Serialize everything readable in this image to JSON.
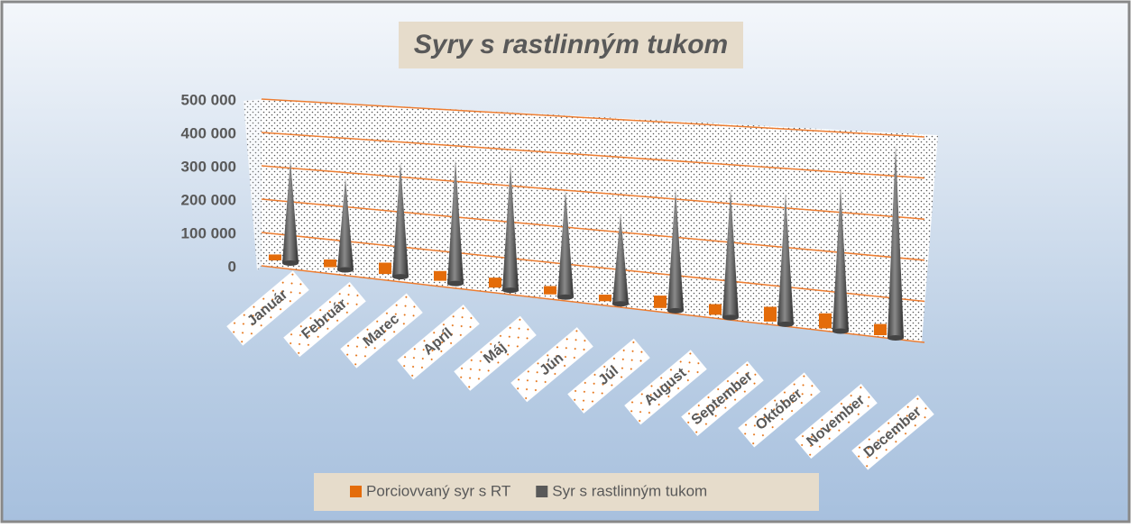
{
  "chart_data": {
    "type": "cone3d",
    "title": "Syry s rastlinným tukom",
    "categories": [
      "Január",
      "Február",
      "Marec",
      "Apríl",
      "Máj",
      "Jún",
      "Júl",
      "August",
      "September",
      "Október",
      "November",
      "December"
    ],
    "series": [
      {
        "name": "Porciovvaný syr s RT",
        "color": "#e46c0a",
        "values": [
          15000,
          20000,
          30000,
          25000,
          25000,
          20000,
          15000,
          30000,
          25000,
          35000,
          35000,
          25000
        ]
      },
      {
        "name": "Syr s rastlinným tukom",
        "color": "#595959",
        "values": [
          310000,
          270000,
          330000,
          350000,
          350000,
          290000,
          240000,
          320000,
          330000,
          330000,
          360000,
          470000
        ]
      }
    ],
    "ylim": [
      0,
      500000
    ],
    "yticks": [
      0,
      {
        "value": 100000,
        "label": "100 000"
      },
      {
        "value": 200000,
        "label": "200 000"
      },
      {
        "value": 300000,
        "label": "300 000"
      },
      {
        "value": 400000,
        "label": "400 000"
      },
      {
        "value": 500000,
        "label": "500 000"
      }
    ],
    "grid": true,
    "legend": "bottom"
  }
}
